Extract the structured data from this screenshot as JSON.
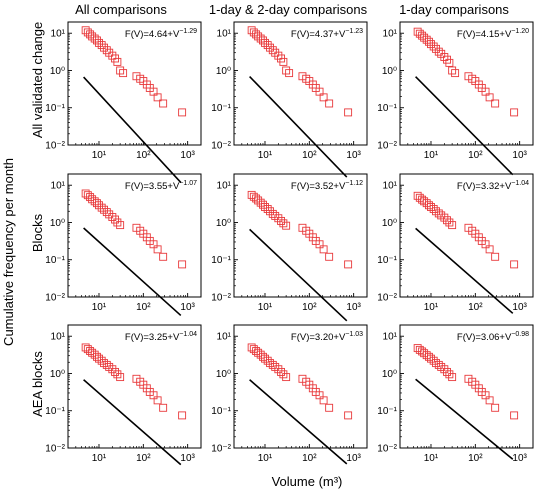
{
  "figure": {
    "ylabel": "Cumulative frequency per month",
    "xlabel": "Volume (m³)",
    "col_titles": [
      "All comparisons",
      "1-day & 2-day comparisons",
      "1-day comparisons"
    ],
    "row_labels": [
      "All validated change",
      "Blocks",
      "AEA blocks"
    ]
  },
  "colors": {
    "points": "#e8393b",
    "fit": "#000000"
  },
  "chart_data": [
    {
      "type": "scatter",
      "row": 0,
      "col": 0,
      "xscale": "log",
      "yscale": "log",
      "xlim": [
        2,
        2000
      ],
      "ylim": [
        0.01,
        20
      ],
      "annotation": "F(V)=4.64+V",
      "exponent": "−1.29",
      "fit": {
        "a": 4.64,
        "b": -1.29
      },
      "x_ticks": [
        "10¹",
        "10²",
        "10³"
      ],
      "y_ticks": [
        "10⁻²",
        "10⁻¹",
        "10⁰",
        "10¹"
      ],
      "x": [
        5,
        5.6,
        6.3,
        7,
        8,
        9,
        10,
        11.5,
        13,
        15,
        17,
        20,
        23,
        26,
        30,
        35,
        70,
        85,
        100,
        120,
        140,
        170,
        210,
        280,
        750
      ],
      "y": [
        12,
        10.5,
        9.3,
        8.2,
        7.2,
        6.4,
        5.5,
        4.8,
        4.1,
        3.5,
        3.0,
        2.5,
        2.1,
        1.7,
        1.0,
        0.85,
        0.7,
        0.6,
        0.52,
        0.42,
        0.34,
        0.27,
        0.19,
        0.13,
        0.075
      ]
    },
    {
      "type": "scatter",
      "row": 0,
      "col": 1,
      "xscale": "log",
      "yscale": "log",
      "xlim": [
        2,
        2000
      ],
      "ylim": [
        0.01,
        20
      ],
      "annotation": "F(V)=4.37+V",
      "exponent": "−1.23",
      "fit": {
        "a": 4.37,
        "b": -1.23
      },
      "x_ticks": [
        "10¹",
        "10²",
        "10³"
      ],
      "y_ticks": [
        "10⁻²",
        "10⁻¹",
        "10⁰",
        "10¹"
      ],
      "x": [
        5,
        5.6,
        6.3,
        7,
        8,
        9,
        10,
        11.5,
        13,
        15,
        17,
        20,
        23,
        26,
        30,
        35,
        70,
        85,
        100,
        120,
        140,
        170,
        210,
        280,
        750
      ],
      "y": [
        12,
        10.5,
        9.3,
        8.2,
        7.2,
        6.4,
        5.5,
        4.8,
        4.1,
        3.5,
        3.0,
        2.5,
        2.1,
        1.7,
        1.0,
        0.85,
        0.7,
        0.6,
        0.52,
        0.42,
        0.34,
        0.27,
        0.19,
        0.13,
        0.075
      ]
    },
    {
      "type": "scatter",
      "row": 0,
      "col": 2,
      "xscale": "log",
      "yscale": "log",
      "xlim": [
        2,
        2000
      ],
      "ylim": [
        0.01,
        20
      ],
      "annotation": "F(V)=4.15+V",
      "exponent": "−1.20",
      "fit": {
        "a": 4.15,
        "b": -1.2
      },
      "x_ticks": [
        "10¹",
        "10²",
        "10³"
      ],
      "y_ticks": [
        "10⁻²",
        "10⁻¹",
        "10⁰",
        "10¹"
      ],
      "x": [
        5,
        5.6,
        6.3,
        7,
        8,
        9,
        10,
        11.5,
        13,
        15,
        17,
        20,
        23,
        26,
        30,
        35,
        70,
        85,
        100,
        120,
        140,
        170,
        210,
        280,
        750
      ],
      "y": [
        11,
        9.7,
        8.6,
        7.6,
        6.7,
        5.9,
        5.1,
        4.4,
        3.8,
        3.2,
        2.8,
        2.3,
        1.95,
        1.6,
        1.0,
        0.85,
        0.7,
        0.6,
        0.52,
        0.42,
        0.34,
        0.27,
        0.19,
        0.13,
        0.075
      ]
    },
    {
      "type": "scatter",
      "row": 1,
      "col": 0,
      "xscale": "log",
      "yscale": "log",
      "xlim": [
        2,
        2000
      ],
      "ylim": [
        0.01,
        20
      ],
      "annotation": "F(V)=3.55+V",
      "exponent": "−1.07",
      "fit": {
        "a": 3.55,
        "b": -1.07
      },
      "x_ticks": [
        "10¹",
        "10²",
        "10³"
      ],
      "y_ticks": [
        "10⁻²",
        "10⁻¹",
        "10⁰",
        "10¹"
      ],
      "x": [
        5,
        5.6,
        6.3,
        7,
        8,
        9,
        10,
        11.5,
        13,
        15,
        17,
        20,
        23,
        26,
        30,
        70,
        85,
        100,
        120,
        140,
        170,
        210,
        280,
        750
      ],
      "y": [
        6,
        5.4,
        4.8,
        4.2,
        3.7,
        3.3,
        2.9,
        2.5,
        2.2,
        1.9,
        1.65,
        1.4,
        1.2,
        1.0,
        0.85,
        0.72,
        0.6,
        0.5,
        0.4,
        0.32,
        0.26,
        0.19,
        0.12,
        0.075
      ]
    },
    {
      "type": "scatter",
      "row": 1,
      "col": 1,
      "xscale": "log",
      "yscale": "log",
      "xlim": [
        2,
        2000
      ],
      "ylim": [
        0.01,
        20
      ],
      "annotation": "F(V)=3.52+V",
      "exponent": "−1.12",
      "fit": {
        "a": 3.52,
        "b": -1.12
      },
      "x_ticks": [
        "10¹",
        "10²",
        "10³"
      ],
      "y_ticks": [
        "10⁻²",
        "10⁻¹",
        "10⁰",
        "10¹"
      ],
      "x": [
        5,
        5.6,
        6.3,
        7,
        8,
        9,
        10,
        11.5,
        13,
        15,
        17,
        20,
        23,
        26,
        30,
        70,
        85,
        100,
        120,
        140,
        170,
        210,
        280,
        750
      ],
      "y": [
        5.5,
        4.9,
        4.4,
        3.9,
        3.4,
        3.0,
        2.6,
        2.3,
        2.0,
        1.7,
        1.5,
        1.3,
        1.1,
        0.95,
        0.82,
        0.72,
        0.6,
        0.5,
        0.4,
        0.32,
        0.26,
        0.19,
        0.12,
        0.075
      ]
    },
    {
      "type": "scatter",
      "row": 1,
      "col": 2,
      "xscale": "log",
      "yscale": "log",
      "xlim": [
        2,
        2000
      ],
      "ylim": [
        0.01,
        20
      ],
      "annotation": "F(V)=3.32+V",
      "exponent": "−1.04",
      "fit": {
        "a": 3.32,
        "b": -1.04
      },
      "x_ticks": [
        "10¹",
        "10²",
        "10³"
      ],
      "y_ticks": [
        "10⁻²",
        "10⁻¹",
        "10⁰",
        "10¹"
      ],
      "x": [
        5,
        5.6,
        6.3,
        7,
        8,
        9,
        10,
        11.5,
        13,
        15,
        17,
        20,
        23,
        26,
        30,
        70,
        85,
        100,
        120,
        140,
        170,
        210,
        280,
        750
      ],
      "y": [
        5.2,
        4.6,
        4.1,
        3.7,
        3.3,
        2.9,
        2.6,
        2.3,
        2.0,
        1.75,
        1.55,
        1.35,
        1.15,
        1.0,
        0.85,
        0.72,
        0.6,
        0.5,
        0.4,
        0.32,
        0.26,
        0.19,
        0.12,
        0.075
      ]
    },
    {
      "type": "scatter",
      "row": 2,
      "col": 0,
      "xscale": "log",
      "yscale": "log",
      "xlim": [
        2,
        2000
      ],
      "ylim": [
        0.01,
        20
      ],
      "annotation": "F(V)=3.25+V",
      "exponent": "−1.04",
      "fit": {
        "a": 3.25,
        "b": -1.04
      },
      "x_ticks": [
        "10¹",
        "10²",
        "10³"
      ],
      "y_ticks": [
        "10⁻²",
        "10⁻¹",
        "10⁰",
        "10¹"
      ],
      "x": [
        5,
        5.6,
        6.3,
        7,
        8,
        9,
        10,
        11.5,
        13,
        15,
        17,
        20,
        23,
        26,
        30,
        70,
        85,
        100,
        120,
        140,
        170,
        210,
        280,
        750
      ],
      "y": [
        5,
        4.5,
        4.0,
        3.6,
        3.2,
        2.8,
        2.5,
        2.2,
        1.9,
        1.7,
        1.5,
        1.3,
        1.1,
        0.95,
        0.8,
        0.72,
        0.6,
        0.5,
        0.4,
        0.32,
        0.26,
        0.19,
        0.12,
        0.075
      ]
    },
    {
      "type": "scatter",
      "row": 2,
      "col": 1,
      "xscale": "log",
      "yscale": "log",
      "xlim": [
        2,
        2000
      ],
      "ylim": [
        0.01,
        20
      ],
      "annotation": "F(V)=3.20+V",
      "exponent": "−1.03",
      "fit": {
        "a": 3.2,
        "b": -1.03
      },
      "x_ticks": [
        "10¹",
        "10²",
        "10³"
      ],
      "y_ticks": [
        "10⁻²",
        "10⁻¹",
        "10⁰",
        "10¹"
      ],
      "x": [
        5,
        5.6,
        6.3,
        7,
        8,
        9,
        10,
        11.5,
        13,
        15,
        17,
        20,
        23,
        26,
        30,
        70,
        85,
        100,
        120,
        140,
        170,
        210,
        280,
        750
      ],
      "y": [
        5,
        4.5,
        4.0,
        3.6,
        3.2,
        2.8,
        2.5,
        2.2,
        1.9,
        1.7,
        1.5,
        1.3,
        1.1,
        0.95,
        0.8,
        0.72,
        0.6,
        0.5,
        0.4,
        0.32,
        0.26,
        0.19,
        0.12,
        0.075
      ]
    },
    {
      "type": "scatter",
      "row": 2,
      "col": 2,
      "xscale": "log",
      "yscale": "log",
      "xlim": [
        2,
        2000
      ],
      "ylim": [
        0.01,
        20
      ],
      "annotation": "F(V)=3.06+V",
      "exponent": "−0.98",
      "fit": {
        "a": 3.06,
        "b": -0.98
      },
      "x_ticks": [
        "10¹",
        "10²",
        "10³"
      ],
      "y_ticks": [
        "10⁻²",
        "10⁻¹",
        "10⁰",
        "10¹"
      ],
      "x": [
        5,
        5.6,
        6.3,
        7,
        8,
        9,
        10,
        11.5,
        13,
        15,
        17,
        20,
        23,
        26,
        30,
        70,
        85,
        100,
        120,
        140,
        170,
        210,
        280,
        750
      ],
      "y": [
        4.8,
        4.3,
        3.9,
        3.5,
        3.1,
        2.8,
        2.5,
        2.2,
        1.9,
        1.7,
        1.5,
        1.3,
        1.1,
        0.95,
        0.8,
        0.72,
        0.6,
        0.5,
        0.4,
        0.32,
        0.26,
        0.19,
        0.12,
        0.075
      ]
    }
  ]
}
